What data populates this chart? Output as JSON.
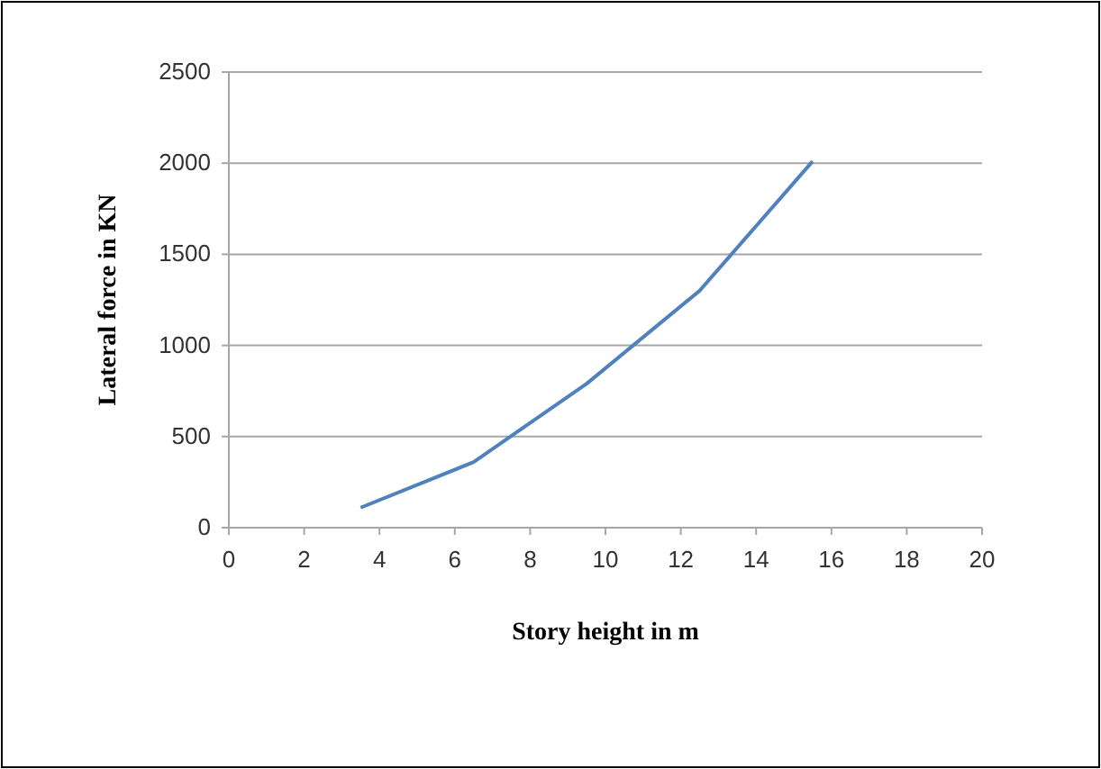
{
  "chart_data": {
    "type": "line",
    "xlabel": "Story height in m",
    "ylabel": "Lateral force in KN",
    "x": [
      3.5,
      6.5,
      9.5,
      12.5,
      15.5
    ],
    "series": [
      {
        "color": "#4f81bd",
        "values": [
          110,
          360,
          790,
          1300,
          2010
        ]
      }
    ],
    "xlim": [
      0,
      20
    ],
    "xticks": [
      0,
      2,
      4,
      6,
      8,
      10,
      12,
      14,
      16,
      18,
      20
    ],
    "ylim": [
      0,
      2500
    ],
    "yticks": [
      0,
      500,
      1000,
      1500,
      2000,
      2500
    ],
    "grid": "y",
    "marker": "none",
    "line_style": "solid"
  }
}
